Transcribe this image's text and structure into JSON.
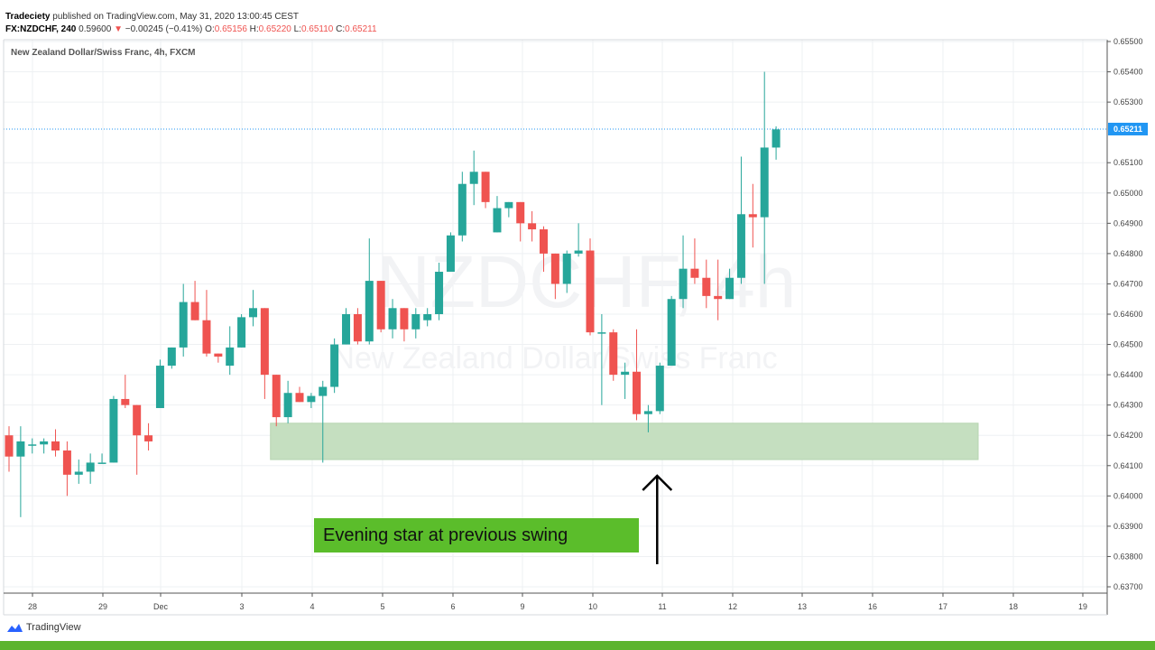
{
  "header": {
    "publisher": "Tradeciety",
    "published_text": "published on TradingView.com, May 31, 2020 13:00:45 CEST",
    "symbol": "FX:NZDCHF, 240",
    "value": "0.59600",
    "change": "−0.00245 (−0.41%)",
    "o_label": "O:",
    "o_value": "0.65156",
    "h_label": "H:",
    "h_value": "0.65220",
    "l_label": "L:",
    "l_value": "0.65110",
    "c_label": "C:",
    "c_value": "0.65211"
  },
  "footer": {
    "logo_text": "TradingView"
  },
  "chart_data": {
    "type": "candlestick",
    "title": "New Zealand Dollar/Swiss Franc, 4h, FXCM",
    "watermark_symbol": "NZDCHF, 4h",
    "watermark_name": "New Zealand Dollar/Swiss Franc",
    "ylim": [
      0.637,
      0.655
    ],
    "y_ticks": [
      "0.65500",
      "0.65400",
      "0.65300",
      "0.65100",
      "0.65000",
      "0.64900",
      "0.64800",
      "0.64700",
      "0.64600",
      "0.64500",
      "0.64400",
      "0.64300",
      "0.64200",
      "0.64100",
      "0.64000",
      "0.63900",
      "0.63800",
      "0.63700"
    ],
    "x_ticks": [
      "28",
      "29",
      "Dec",
      "3",
      "4",
      "5",
      "6",
      "9",
      "10",
      "11",
      "12",
      "13",
      "16",
      "17",
      "18",
      "19"
    ],
    "last_price": "0.65211",
    "last_price_value": 0.65211,
    "colors": {
      "up": "#26a69a",
      "down": "#ef5350",
      "zone": "#c5dfc0",
      "annotation": "#5bbd2b",
      "last_line": "#2196f3"
    },
    "zone": {
      "from_index": 23,
      "to_index": 83,
      "low": 0.6412,
      "high": 0.6424
    },
    "annotation": "Evening star at previous swing",
    "arrow_index": 56,
    "candles": [
      [
        0.642,
        0.6423,
        0.6408,
        0.6413
      ],
      [
        0.6413,
        0.6423,
        0.6393,
        0.6418
      ],
      [
        0.6417,
        0.6419,
        0.6414,
        0.6417
      ],
      [
        0.6417,
        0.6419,
        0.6414,
        0.6418
      ],
      [
        0.6418,
        0.6422,
        0.6413,
        0.6415
      ],
      [
        0.6415,
        0.6418,
        0.64,
        0.6407
      ],
      [
        0.6407,
        0.6412,
        0.6404,
        0.6408
      ],
      [
        0.6408,
        0.6414,
        0.6404,
        0.6411
      ],
      [
        0.6411,
        0.6414,
        0.6411,
        0.6411
      ],
      [
        0.6411,
        0.6433,
        0.6411,
        0.6432
      ],
      [
        0.6432,
        0.644,
        0.6429,
        0.643
      ],
      [
        0.643,
        0.643,
        0.6407,
        0.642
      ],
      [
        0.642,
        0.6424,
        0.6415,
        0.6418
      ],
      [
        0.6429,
        0.6445,
        0.6429,
        0.6443
      ],
      [
        0.6443,
        0.6449,
        0.6442,
        0.6449
      ],
      [
        0.6449,
        0.647,
        0.6446,
        0.6464
      ],
      [
        0.6464,
        0.6471,
        0.6458,
        0.6458
      ],
      [
        0.6458,
        0.6468,
        0.6446,
        0.6447
      ],
      [
        0.6447,
        0.6447,
        0.6444,
        0.6446
      ],
      [
        0.6443,
        0.6456,
        0.644,
        0.6449
      ],
      [
        0.6449,
        0.646,
        0.6449,
        0.6459
      ],
      [
        0.6459,
        0.6468,
        0.6456,
        0.6462
      ],
      [
        0.6462,
        0.6462,
        0.6432,
        0.644
      ],
      [
        0.644,
        0.644,
        0.6423,
        0.6426
      ],
      [
        0.6426,
        0.6438,
        0.6424,
        0.6434
      ],
      [
        0.6434,
        0.6436,
        0.6431,
        0.6431
      ],
      [
        0.6431,
        0.6434,
        0.6429,
        0.6433
      ],
      [
        0.6433,
        0.6438,
        0.6411,
        0.6436
      ],
      [
        0.6436,
        0.6452,
        0.6434,
        0.645
      ],
      [
        0.645,
        0.6462,
        0.645,
        0.646
      ],
      [
        0.646,
        0.6462,
        0.645,
        0.6451
      ],
      [
        0.6451,
        0.6485,
        0.645,
        0.6471
      ],
      [
        0.6471,
        0.6471,
        0.6454,
        0.6455
      ],
      [
        0.6455,
        0.6465,
        0.6452,
        0.6462
      ],
      [
        0.6462,
        0.6462,
        0.6451,
        0.6455
      ],
      [
        0.6455,
        0.6462,
        0.6452,
        0.646
      ],
      [
        0.6458,
        0.6462,
        0.6456,
        0.646
      ],
      [
        0.646,
        0.6477,
        0.6458,
        0.6474
      ],
      [
        0.6474,
        0.6487,
        0.6474,
        0.6486
      ],
      [
        0.6486,
        0.6507,
        0.6484,
        0.6503
      ],
      [
        0.6503,
        0.6514,
        0.6496,
        0.6507
      ],
      [
        0.6507,
        0.6507,
        0.6495,
        0.6497
      ],
      [
        0.6487,
        0.6499,
        0.6487,
        0.6495
      ],
      [
        0.6495,
        0.6497,
        0.6492,
        0.6497
      ],
      [
        0.6497,
        0.6497,
        0.6484,
        0.649
      ],
      [
        0.649,
        0.6494,
        0.6484,
        0.6488
      ],
      [
        0.6488,
        0.6489,
        0.6474,
        0.648
      ],
      [
        0.648,
        0.648,
        0.6465,
        0.647
      ],
      [
        0.647,
        0.6481,
        0.6467,
        0.648
      ],
      [
        0.648,
        0.649,
        0.6479,
        0.6481
      ],
      [
        0.6481,
        0.6485,
        0.6453,
        0.6454
      ],
      [
        0.6454,
        0.646,
        0.643,
        0.6454
      ],
      [
        0.6454,
        0.6455,
        0.6438,
        0.644
      ],
      [
        0.644,
        0.6444,
        0.6432,
        0.6441
      ],
      [
        0.6441,
        0.6455,
        0.6425,
        0.6427
      ],
      [
        0.6427,
        0.643,
        0.6421,
        0.6428
      ],
      [
        0.6428,
        0.6444,
        0.6427,
        0.6443
      ],
      [
        0.6443,
        0.6466,
        0.6443,
        0.6465
      ],
      [
        0.6465,
        0.6486,
        0.6462,
        0.6475
      ],
      [
        0.6475,
        0.6485,
        0.647,
        0.6472
      ],
      [
        0.6472,
        0.6478,
        0.6462,
        0.6466
      ],
      [
        0.6466,
        0.6478,
        0.6458,
        0.6465
      ],
      [
        0.6465,
        0.6475,
        0.6465,
        0.6472
      ],
      [
        0.6472,
        0.6512,
        0.647,
        0.6493
      ],
      [
        0.6493,
        0.6503,
        0.6482,
        0.6492
      ],
      [
        0.6492,
        0.654,
        0.647,
        0.6515
      ],
      [
        0.6515,
        0.6522,
        0.6511,
        0.6521
      ]
    ]
  }
}
